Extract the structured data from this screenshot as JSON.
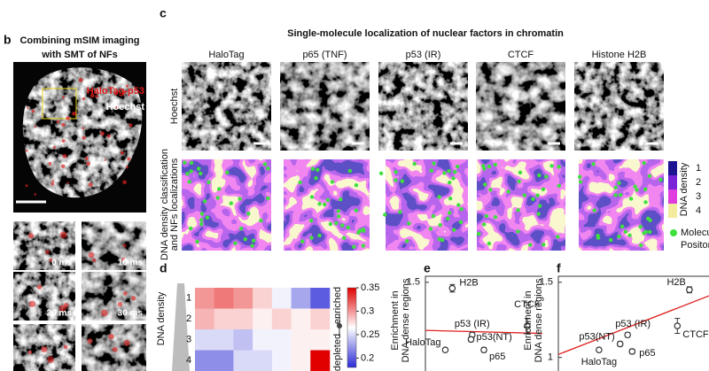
{
  "panel_b": {
    "label": "b",
    "title": [
      "Combining mSIM imaging",
      "with SMT of NFs"
    ],
    "legend": [
      "HaloTag-p53",
      "Hoechst"
    ],
    "frame_labels": [
      "0 ms",
      "10 ms",
      "20 ms",
      "30 ms"
    ]
  },
  "panel_c": {
    "label": "c",
    "title": "Single-molecule localization of nuclear factors in chromatin",
    "columns": [
      "HaloTag",
      "p65 (TNF)",
      "p53 (IR)",
      "CTCF",
      "Histone H2B"
    ],
    "rows": [
      [
        "Hoechst"
      ],
      [
        "DNA density classification",
        "and  NFs localizations"
      ]
    ],
    "legend": {
      "title": "DNA density",
      "levels": [
        "1",
        "2",
        "3",
        "4"
      ],
      "colors": [
        "#1c1490",
        "#7a22d8",
        "#e03ce0",
        "#f2ec9c"
      ],
      "marker": [
        "Molecule",
        "Positon"
      ],
      "marker_color": "#3ee03e"
    }
  },
  "chart_data": [
    {
      "type": "heatmap",
      "label": "d",
      "ylabel": "DNA density",
      "categories": [
        null,
        null,
        null,
        null,
        null,
        null,
        null
      ],
      "rows": [
        "1",
        "2",
        "3",
        "4"
      ],
      "values": [
        [
          0.3,
          0.31,
          0.3,
          0.28,
          0.26,
          0.23,
          0.2
        ],
        [
          0.29,
          0.28,
          0.28,
          0.27,
          0.28,
          0.27,
          0.28
        ],
        [
          0.25,
          0.25,
          0.24,
          0.26,
          0.26,
          0.27,
          0.27
        ],
        [
          0.22,
          0.22,
          0.25,
          0.25,
          0.26,
          0.27,
          0.35
        ]
      ],
      "zlim": [
        0.18,
        0.35
      ],
      "zticks": [
        0.2,
        0.25,
        0.3,
        0.35
      ],
      "colormap": [
        "#2a2ad6",
        "#ffffff",
        "#e00000"
      ],
      "colorbar_labels": [
        "enriched",
        "depleted"
      ]
    },
    {
      "type": "scatter",
      "label": "e",
      "ylabel": [
        "Enrichment in",
        "DNA dense regions"
      ],
      "xlim": [
        0,
        1
      ],
      "ylim": [
        0.91,
        1.54
      ],
      "yticks": [
        1.5
      ],
      "color": "#333333",
      "labels": [
        "HaloTag",
        "p65",
        "p53 (IR)",
        "p53(NT)",
        "CTCF",
        "H2B"
      ],
      "x": [
        0.17,
        0.5,
        0.4,
        0.39,
        0.87,
        0.23
      ],
      "values": [
        1.05,
        1.05,
        1.15,
        1.12,
        1.21,
        1.46
      ],
      "errors": [
        0.01,
        0.015,
        0.015,
        0.015,
        0.05,
        0.025
      ],
      "fit": {
        "color": "#e02020",
        "x": [
          0,
          1
        ],
        "values": [
          1.18,
          1.16
        ]
      }
    },
    {
      "type": "scatter",
      "label": "f",
      "ylabel": [
        "Enrichment in",
        "DNA dense regions"
      ],
      "xlim": [
        0,
        1
      ],
      "ylim": [
        0.91,
        1.54
      ],
      "yticks": [
        1,
        1.5
      ],
      "color": "#333333",
      "labels": [
        "HaloTag",
        "p65",
        "p53 (IR)",
        "p53(NT)",
        "CTCF",
        "H2B"
      ],
      "x": [
        0.27,
        0.49,
        0.46,
        0.41,
        0.79,
        0.87
      ],
      "values": [
        1.05,
        1.04,
        1.15,
        1.09,
        1.21,
        1.45
      ],
      "errors": [
        0.01,
        0.015,
        0.015,
        0.015,
        0.05,
        0.02
      ],
      "fit": {
        "color": "#e02020",
        "x": [
          0,
          1
        ],
        "values": [
          1.02,
          1.41
        ]
      }
    }
  ]
}
